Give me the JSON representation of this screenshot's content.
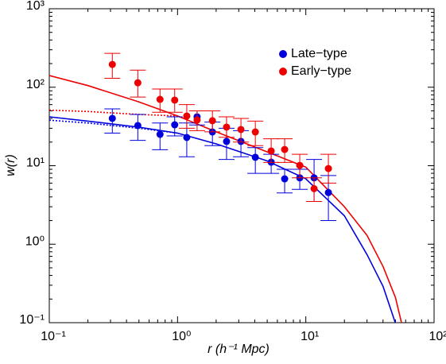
{
  "chart_data": {
    "type": "scatter",
    "xlabel": "r (h⁻¹ Mpc)",
    "ylabel": "w(r)",
    "xscale": "log",
    "yscale": "log",
    "xlim": [
      0.1,
      100
    ],
    "ylim": [
      0.1,
      1000
    ],
    "xticks": [
      {
        "value": 0.1,
        "label": "10⁻¹"
      },
      {
        "value": 1,
        "label": "10⁰"
      },
      {
        "value": 10,
        "label": "10¹"
      },
      {
        "value": 100,
        "label": "10²"
      }
    ],
    "yticks": [
      {
        "value": 0.1,
        "label": "10⁻¹"
      },
      {
        "value": 1,
        "label": "10⁰"
      },
      {
        "value": 10,
        "label": "10¹"
      },
      {
        "value": 100,
        "label": "10²"
      },
      {
        "value": 1000,
        "label": "10³"
      }
    ],
    "legend": "upper right",
    "series": [
      {
        "name": "Late−type",
        "color": "#0000dd",
        "x": [
          0.31,
          0.49,
          0.73,
          0.95,
          1.18,
          1.42,
          1.87,
          2.41,
          3.12,
          4.04,
          5.37,
          6.84,
          8.97,
          11.6,
          15.0
        ],
        "values": [
          40.1,
          32.5,
          25.1,
          33.2,
          22.9,
          42.0,
          26.9,
          20.4,
          20.4,
          12.8,
          11.1,
          6.8,
          7.0,
          7.0,
          4.55
        ],
        "lower": [
          26,
          21,
          16,
          24,
          13,
          33,
          18,
          12,
          13,
          8,
          8,
          4.5,
          5,
          3.5,
          2
        ],
        "upper": [
          53,
          45,
          35,
          42,
          35,
          50,
          36,
          30,
          28,
          17,
          14,
          9,
          9,
          12,
          7.5
        ]
      },
      {
        "name": "Early−type",
        "color": "#ee0000",
        "x": [
          0.31,
          0.49,
          0.73,
          0.95,
          1.18,
          1.42,
          1.87,
          2.41,
          3.12,
          4.04,
          5.37,
          6.84,
          8.97,
          11.6,
          15.0
        ],
        "values": [
          195,
          114,
          70,
          68.5,
          43,
          38.2,
          37.4,
          31,
          28.9,
          26.9,
          15.4,
          16.1,
          10.1,
          5.1,
          9.2
        ],
        "lower": [
          130,
          75,
          48,
          48,
          30,
          28,
          27,
          23,
          20,
          18,
          11,
          11,
          7,
          3.5,
          6
        ],
        "upper": [
          270,
          165,
          95,
          95,
          60,
          50,
          50,
          42,
          40,
          37,
          22,
          22,
          14,
          7,
          14
        ]
      }
    ],
    "curves": [
      {
        "color": "#ee0000",
        "style": "solid",
        "x": [
          0.1,
          0.2,
          0.5,
          1,
          2,
          5,
          10,
          20,
          30,
          40,
          50,
          55.7
        ],
        "values": [
          141,
          105,
          65,
          43,
          27,
          15,
          9.6,
          3.0,
          1.3,
          0.52,
          0.21,
          0.1
        ]
      },
      {
        "color": "#ee0000",
        "style": "dotted",
        "x": [
          0.1,
          0.2,
          0.5,
          1
        ],
        "values": [
          51,
          49,
          45,
          43
        ]
      },
      {
        "color": "#0000dd",
        "style": "solid",
        "x": [
          0.1,
          0.2,
          0.5,
          1,
          2,
          5,
          10,
          20,
          30,
          40,
          49.8
        ],
        "values": [
          42,
          37,
          31,
          26,
          19,
          11.5,
          6.8,
          2.3,
          0.74,
          0.29,
          0.1
        ]
      },
      {
        "color": "#0000dd",
        "style": "dotted",
        "x": [
          0.1,
          0.2,
          0.5,
          1
        ],
        "values": [
          38,
          35,
          30,
          26
        ]
      }
    ]
  }
}
